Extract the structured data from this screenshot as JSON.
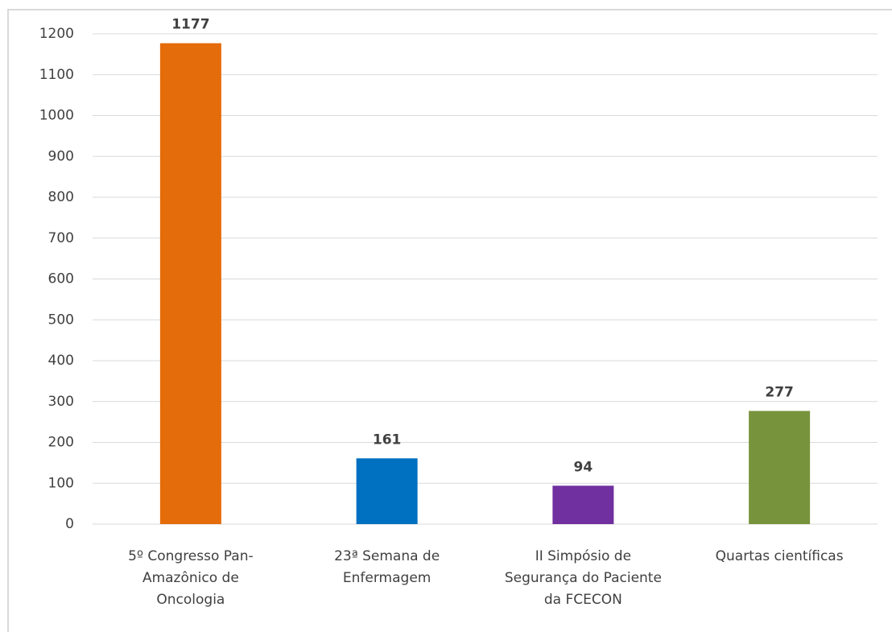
{
  "chart_data": {
    "type": "bar",
    "categories": [
      "5º Congresso Pan-Amazônico de Oncologia",
      "23ª Semana de Enfermagem",
      "II Simpósio de Segurança do Paciente da FCECON",
      "Quartas científicas"
    ],
    "values": [
      1177,
      161,
      94,
      277
    ],
    "colors": [
      "#e46c0a",
      "#0070c0",
      "#7030a0",
      "#77933c"
    ],
    "ylim": [
      0,
      1200
    ],
    "yticks": [
      0,
      100,
      200,
      300,
      400,
      500,
      600,
      700,
      800,
      900,
      1000,
      1100,
      1200
    ],
    "grid": true
  }
}
